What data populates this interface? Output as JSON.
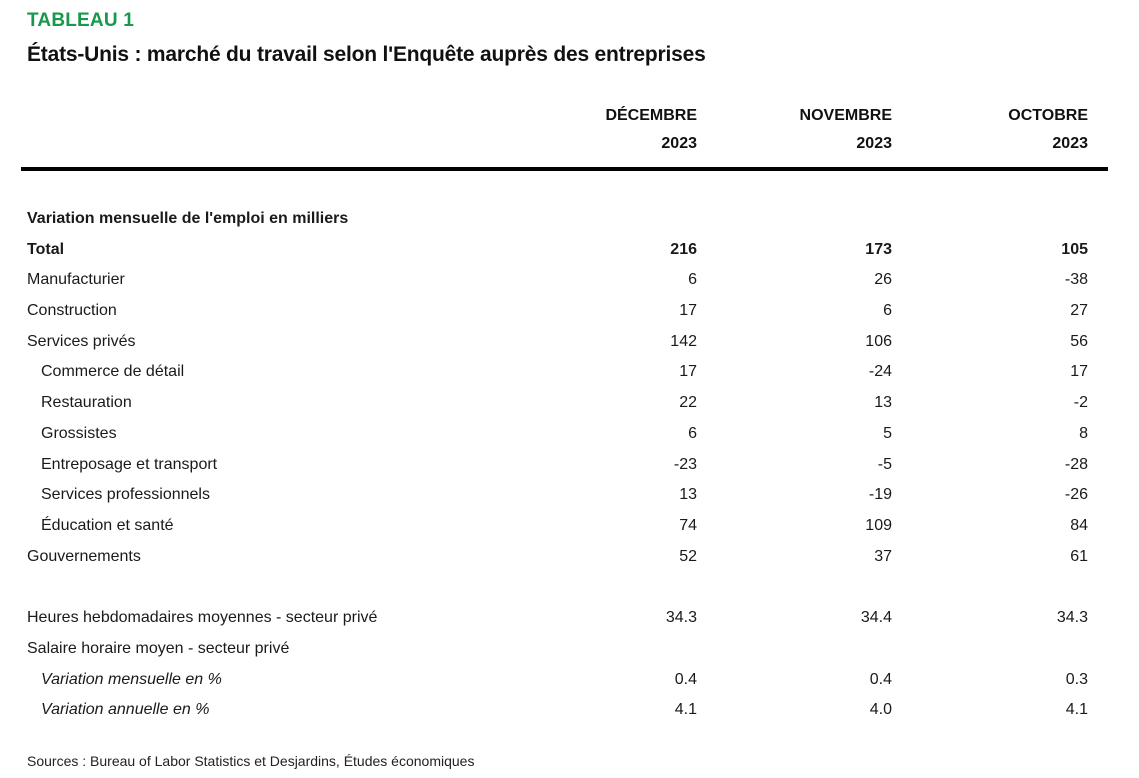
{
  "page": {
    "tableau_label": "TABLEAU 1",
    "title": "États-Unis : marché du travail selon l'Enquête auprès des entreprises",
    "sources": "Sources : Bureau of Labor Statistics et Desjardins, Études économiques",
    "accent_green": "#17984b"
  },
  "table": {
    "columns": [
      {
        "month": "DÉCEMBRE",
        "year": "2023"
      },
      {
        "month": "NOVEMBRE",
        "year": "2023"
      },
      {
        "month": "OCTOBRE",
        "year": "2023"
      }
    ],
    "rows": [
      {
        "label": "Variation mensuelle de l'emploi en milliers",
        "values": [
          "",
          "",
          ""
        ],
        "bold": true
      },
      {
        "label": "Total",
        "values": [
          "216",
          "173",
          "105"
        ],
        "bold": true
      },
      {
        "label": "Manufacturier",
        "values": [
          "6",
          "26",
          "-38"
        ]
      },
      {
        "label": "Construction",
        "values": [
          "17",
          "6",
          "27"
        ]
      },
      {
        "label": "Services privés",
        "values": [
          "142",
          "106",
          "56"
        ]
      },
      {
        "label": "Commerce de détail",
        "values": [
          "17",
          "-24",
          "17"
        ],
        "indent": true
      },
      {
        "label": "Restauration",
        "values": [
          "22",
          "13",
          "-2"
        ],
        "indent": true
      },
      {
        "label": "Grossistes",
        "values": [
          "6",
          "5",
          "8"
        ],
        "indent": true
      },
      {
        "label": "Entreposage et transport",
        "values": [
          "-23",
          "-5",
          "-28"
        ],
        "indent": true
      },
      {
        "label": "Services professionnels",
        "values": [
          "13",
          "-19",
          "-26"
        ],
        "indent": true
      },
      {
        "label": "Éducation et santé",
        "values": [
          "74",
          "109",
          "84"
        ],
        "indent": true
      },
      {
        "label": "Gouvernements",
        "values": [
          "52",
          "37",
          "61"
        ]
      },
      {
        "label": "",
        "values": [
          "",
          "",
          ""
        ],
        "spacer": true
      },
      {
        "label": "Heures hebdomadaires moyennes - secteur privé",
        "values": [
          "34.3",
          "34.4",
          "34.3"
        ]
      },
      {
        "label": "Salaire horaire moyen - secteur privé",
        "values": [
          "",
          "",
          ""
        ]
      },
      {
        "label": "Variation mensuelle en %",
        "values": [
          "0.4",
          "0.4",
          "0.3"
        ],
        "indent": true,
        "italic": true
      },
      {
        "label": "Variation annuelle en %",
        "values": [
          "4.1",
          "4.0",
          "4.1"
        ],
        "indent": true,
        "italic": true
      }
    ]
  }
}
